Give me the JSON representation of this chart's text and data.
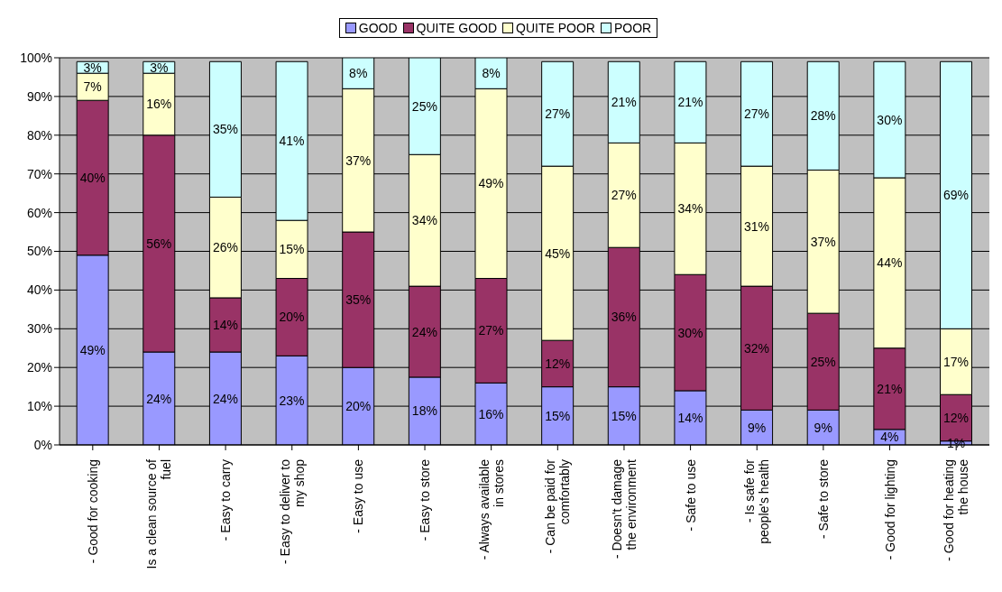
{
  "chart_data": {
    "type": "bar",
    "stacked": true,
    "categories": [
      "- Good for cooking",
      "Is a clean source of fuel",
      "- Easy to carry",
      "- Easy to deliver to my shop",
      "- Easy to use",
      "- Easy to store",
      "- Always available in stores",
      "- Can be paid for comfortably",
      "- Doesn't damage the environment",
      "- Safe to use",
      "- Is safe for people's health",
      "- Safe to store",
      "- Good for lighting",
      "- Good for heating the house"
    ],
    "series": [
      {
        "name": "GOOD",
        "color": "#9999ff",
        "values": [
          49,
          24,
          24,
          23,
          20,
          17.5,
          16,
          15,
          15,
          14,
          9,
          9,
          4,
          1
        ],
        "value_labels": [
          "49%",
          "24%",
          "24%",
          "23%",
          "20%",
          "18%",
          "16%",
          "15%",
          "15%",
          "14%",
          "9%",
          "9%",
          "4%",
          "1%"
        ]
      },
      {
        "name": "QUITE GOOD",
        "color": "#993366",
        "values": [
          40,
          56,
          14,
          20,
          35,
          23.5,
          27,
          12,
          36,
          30,
          32,
          25,
          21,
          12
        ],
        "value_labels": [
          "40%",
          "56%",
          "14%",
          "20%",
          "35%",
          "24%",
          "27%",
          "12%",
          "36%",
          "30%",
          "32%",
          "25%",
          "21%",
          "12%"
        ]
      },
      {
        "name": "QUITE POOR",
        "color": "#ffffcc",
        "values": [
          7,
          16,
          26,
          15,
          37,
          34,
          49,
          45,
          27,
          34,
          31,
          37,
          44,
          17
        ],
        "value_labels": [
          "7%",
          "16%",
          "26%",
          "15%",
          "37%",
          "34%",
          "49%",
          "45%",
          "27%",
          "34%",
          "31%",
          "37%",
          "44%",
          "17%"
        ]
      },
      {
        "name": "POOR",
        "color": "#ccffff",
        "values": [
          3,
          3,
          35,
          41,
          8,
          25,
          8,
          27,
          21,
          21,
          27,
          28,
          30,
          69
        ],
        "value_labels": [
          "3%",
          "3%",
          "35%",
          "41%",
          "8%",
          "25%",
          "8%",
          "27%",
          "21%",
          "21%",
          "27%",
          "28%",
          "30%",
          "69%"
        ]
      }
    ],
    "ylim": [
      0,
      100
    ],
    "yticks": [
      {
        "value": 0,
        "label": "0%"
      },
      {
        "value": 10,
        "label": "10%"
      },
      {
        "value": 20,
        "label": "20%"
      },
      {
        "value": 30,
        "label": "30%"
      },
      {
        "value": 40,
        "label": "40%"
      },
      {
        "value": 50,
        "label": "50%"
      },
      {
        "value": 60,
        "label": "60%"
      },
      {
        "value": 70,
        "label": "70%"
      },
      {
        "value": 80,
        "label": "80%"
      },
      {
        "value": 90,
        "label": "90%"
      },
      {
        "value": 100,
        "label": "100%"
      }
    ],
    "grid": "y",
    "legend": "top"
  }
}
